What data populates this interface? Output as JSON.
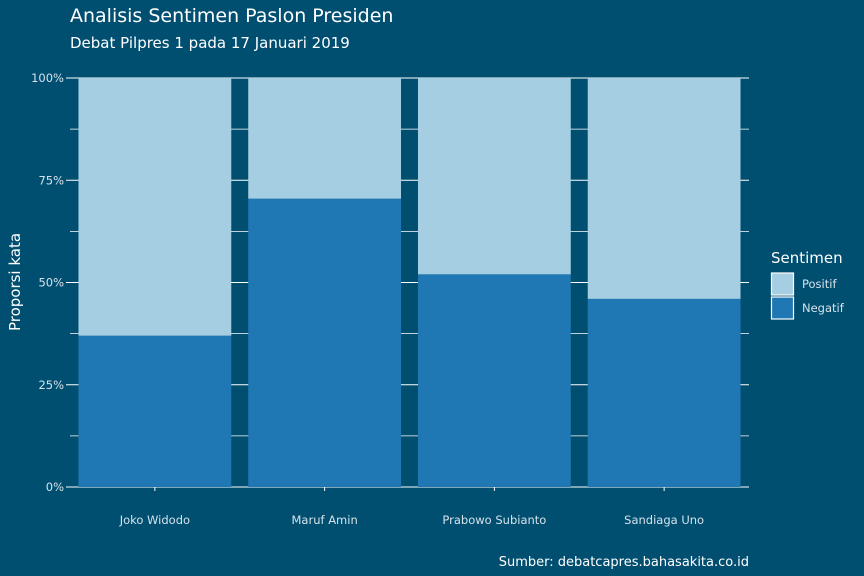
{
  "chart_data": {
    "type": "bar",
    "stacked": true,
    "title": "Analisis Sentimen Paslon Presiden",
    "subtitle": "Debat Pilpres 1 pada 17 Januari 2019",
    "xlabel": "",
    "ylabel": "Proporsi kata",
    "caption": "Sumber: debatcapres.bahasakita.co.id",
    "ylim": [
      0,
      1
    ],
    "yticks": [
      "0%",
      "25%",
      "50%",
      "75%",
      "100%"
    ],
    "categories": [
      "Joko Widodo",
      "Maruf Amin",
      "Prabowo Subianto",
      "Sandiaga Uno"
    ],
    "series": [
      {
        "name": "Negatif",
        "color": "#1f78b4",
        "values": [
          0.37,
          0.705,
          0.52,
          0.46
        ]
      },
      {
        "name": "Positif",
        "color": "#a6cee3",
        "values": [
          0.63,
          0.295,
          0.48,
          0.54
        ]
      }
    ],
    "legend": {
      "title": "Sentimen",
      "position": "right",
      "items": [
        {
          "name": "Positif",
          "color": "#a6cee3"
        },
        {
          "name": "Negatif",
          "color": "#1f78b4"
        }
      ]
    },
    "grid": "horizontal"
  }
}
